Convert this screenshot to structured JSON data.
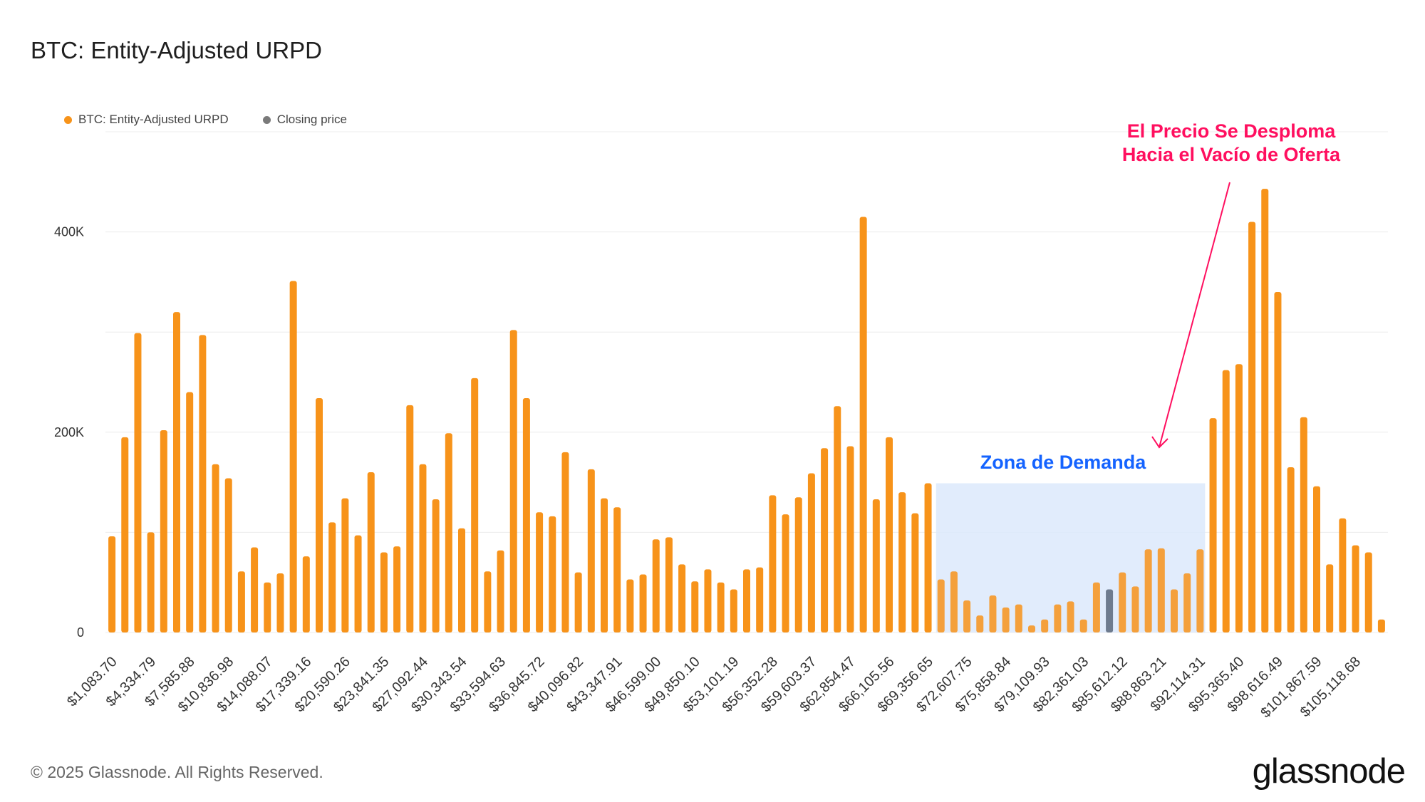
{
  "header": {
    "title": "BTC: Entity-Adjusted URPD"
  },
  "legend": [
    {
      "label": "BTC: Entity-Adjusted URPD",
      "color": "#f7931a"
    },
    {
      "label": "Closing price",
      "color": "#7a7a7a"
    }
  ],
  "footer": {
    "copyright": "© 2025 Glassnode. All Rights Reserved.",
    "logo_text": "glassnode"
  },
  "annotations": {
    "supply_gap_line1": "El Precio Se Desploma",
    "supply_gap_line2": "Hacia el Vacío de Oferta",
    "demand_zone": "Zona de Demanda"
  },
  "colors": {
    "bar": "#f7931a",
    "closing_bar": "#6e7b8e",
    "zone_fill": "#dce9fb",
    "arrow": "#ff0f5f"
  },
  "chart_data": {
    "type": "bar",
    "title": "BTC: Entity-Adjusted URPD",
    "xlabel": "",
    "ylabel": "",
    "ylim": [
      0,
      500000
    ],
    "yticks": [
      {
        "value": 0,
        "label": "0"
      },
      {
        "value": 200000,
        "label": "200K"
      },
      {
        "value": 400000,
        "label": "400K"
      }
    ],
    "grid": true,
    "legend_position": "top-left",
    "x_tick_labels": [
      "$1,083.70",
      "$4,334.79",
      "$7,585.88",
      "$10,836.98",
      "$14,088.07",
      "$17,339.16",
      "$20,590.26",
      "$23,841.35",
      "$27,092.44",
      "$30,343.54",
      "$33,594.63",
      "$36,845.72",
      "$40,096.82",
      "$43,347.91",
      "$46,599.00",
      "$49,850.10",
      "$53,101.19",
      "$56,352.28",
      "$59,603.37",
      "$62,854.47",
      "$66,105.56",
      "$69,356.65",
      "$72,607.75",
      "$75,858.84",
      "$79,109.93",
      "$82,361.03",
      "$85,612.12",
      "$88,863.21",
      "$92,114.31",
      "$95,365.40",
      "$98,616.49",
      "$101,867.59",
      "$105,118.68"
    ],
    "bucket_width_usd": 1083.7,
    "closing_price_bucket_index": 77,
    "demand_zone_bucket_range": [
      64,
      84
    ],
    "series": [
      {
        "name": "BTC: Entity-Adjusted URPD",
        "values": [
          96000,
          195000,
          299000,
          100000,
          202000,
          320000,
          240000,
          297000,
          168000,
          154000,
          61000,
          85000,
          50000,
          59000,
          351000,
          76000,
          234000,
          110000,
          134000,
          97000,
          160000,
          80000,
          86000,
          227000,
          168000,
          133000,
          199000,
          104000,
          254000,
          61000,
          82000,
          302000,
          234000,
          120000,
          116000,
          180000,
          60000,
          163000,
          134000,
          125000,
          53000,
          58000,
          93000,
          95000,
          68000,
          51000,
          63000,
          50000,
          43000,
          63000,
          65000,
          137000,
          118000,
          135000,
          159000,
          184000,
          226000,
          186000,
          415000,
          133000,
          195000,
          140000,
          119000,
          149000,
          53000,
          61000,
          32000,
          17000,
          37000,
          25000,
          28000,
          7000,
          13000,
          28000,
          31000,
          13000,
          50000,
          43000,
          60000,
          46000,
          83000,
          84000,
          43000,
          59000,
          83000,
          214000,
          262000,
          268000,
          410000,
          443000,
          340000,
          165000,
          215000,
          146000,
          68000,
          114000,
          87000,
          80000,
          13000
        ]
      },
      {
        "name": "Closing price",
        "values": [
          {
            "index": 77,
            "value": 43000
          }
        ]
      }
    ]
  }
}
